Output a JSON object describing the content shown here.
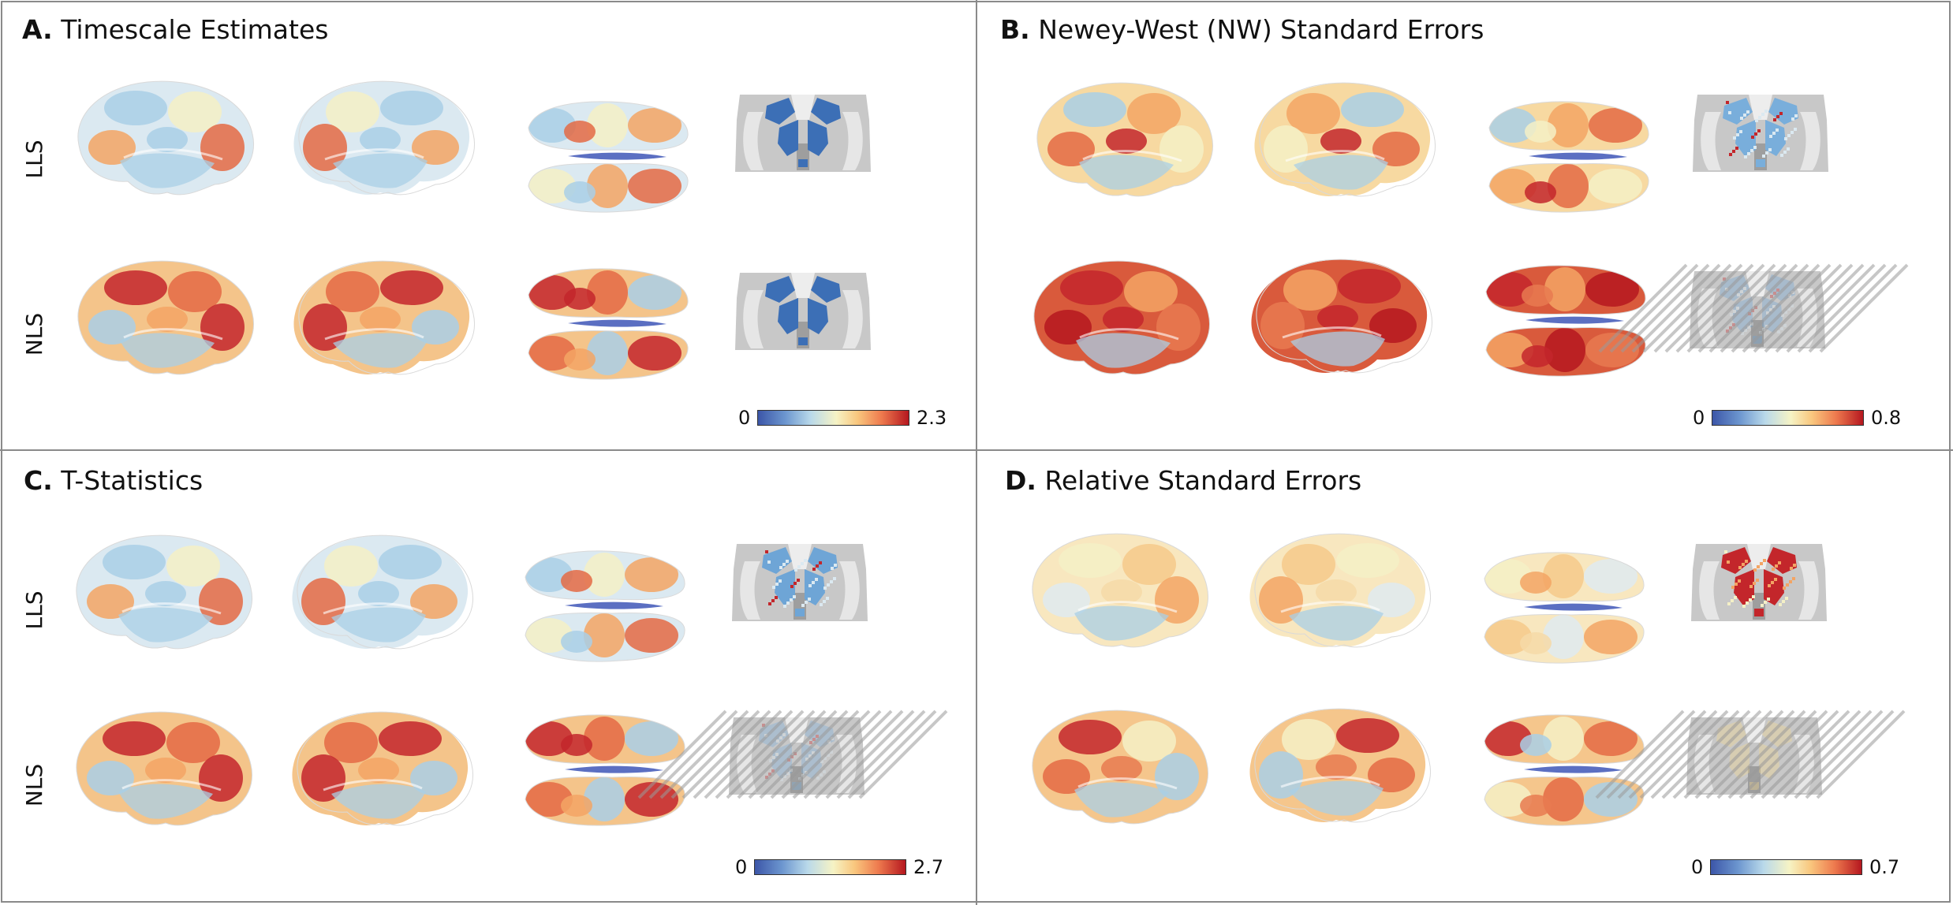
{
  "colors": {
    "cold": "#3c6fb6",
    "cool": "#a9cfe6",
    "neutral": "#f4f0c6",
    "warm": "#f3a464",
    "hot": "#c3262b",
    "gray": "#c8c8c8"
  },
  "panels": [
    {
      "letter": "A.",
      "title": "Timescale Estimates",
      "rows": [
        "LLS",
        "NLS"
      ],
      "colorbar": {
        "min": "0",
        "max": "2.3"
      }
    },
    {
      "letter": "B.",
      "title": "Newey-West (NW) Standard Errors",
      "rows": [
        "",
        ""
      ],
      "colorbar": {
        "min": "0",
        "max": "0.8"
      }
    },
    {
      "letter": "C.",
      "title": "T-Statistics",
      "rows": [
        "LLS",
        "NLS"
      ],
      "colorbar": {
        "min": "0",
        "max": "2.7"
      }
    },
    {
      "letter": "D.",
      "title": "Relative Standard Errors",
      "rows": [
        "",
        ""
      ],
      "colorbar": {
        "min": "0",
        "max": "0.7"
      }
    }
  ]
}
